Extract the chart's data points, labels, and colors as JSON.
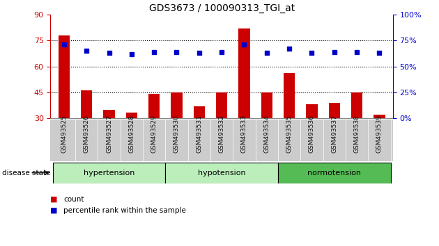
{
  "title": "GDS3673 / 100090313_TGI_at",
  "samples": [
    "GSM493525",
    "GSM493526",
    "GSM493527",
    "GSM493528",
    "GSM493529",
    "GSM493530",
    "GSM493531",
    "GSM493532",
    "GSM493533",
    "GSM493534",
    "GSM493535",
    "GSM493536",
    "GSM493537",
    "GSM493538",
    "GSM493539"
  ],
  "counts": [
    78,
    46,
    35,
    33,
    44,
    45,
    37,
    45,
    82,
    45,
    56,
    38,
    39,
    45,
    32
  ],
  "percentiles": [
    71,
    65,
    63,
    62,
    64,
    64,
    63,
    64,
    71,
    63,
    67,
    63,
    64,
    64,
    63
  ],
  "ylim_left": [
    30,
    90
  ],
  "ylim_right": [
    0,
    100
  ],
  "yticks_left": [
    30,
    45,
    60,
    75,
    90
  ],
  "yticks_right": [
    0,
    25,
    50,
    75,
    100
  ],
  "ytick_labels_right": [
    "0%",
    "25%",
    "50%",
    "75%",
    "100%"
  ],
  "hlines": [
    45,
    60,
    75
  ],
  "bar_color": "#cc0000",
  "dot_color": "#0000cc",
  "groups": [
    {
      "label": "hypertension",
      "start": 0,
      "end": 5
    },
    {
      "label": "hypotension",
      "start": 5,
      "end": 10
    },
    {
      "label": "normotension",
      "start": 10,
      "end": 15
    }
  ],
  "group_colors": [
    "#bbeebb",
    "#bbeebb",
    "#55bb55"
  ],
  "xlabel_bottom": "disease state",
  "legend_count_label": "count",
  "legend_pct_label": "percentile rank within the sample",
  "xtick_bg": "#cccccc"
}
